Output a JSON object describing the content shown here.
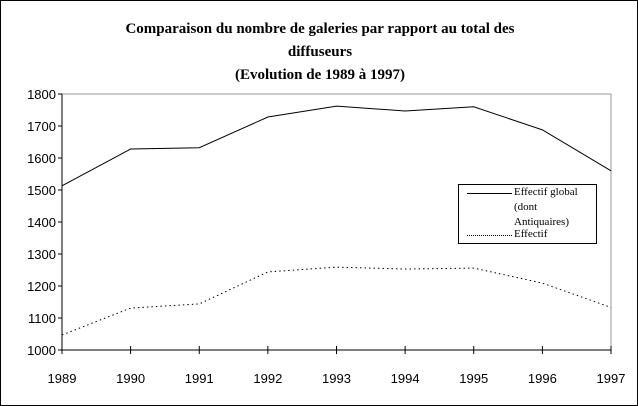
{
  "chart_data": {
    "type": "line",
    "title": "Comparaison du nombre de galeries par rapport au total des diffuseurs",
    "subtitle": "(Evolution de 1989 à 1997)",
    "xlabel": "",
    "ylabel": "",
    "x": [
      1989,
      1990,
      1991,
      1992,
      1993,
      1994,
      1995,
      1996,
      1997
    ],
    "ylim": [
      1000,
      1800
    ],
    "yticks": [
      1000,
      1100,
      1200,
      1300,
      1400,
      1500,
      1600,
      1700,
      1800
    ],
    "grid": false,
    "legend_position": "right",
    "series": [
      {
        "name": "Effectif global (dont Antiquaires)",
        "style": "solid",
        "color": "#000000",
        "values": [
          1513,
          1628,
          1632,
          1728,
          1762,
          1747,
          1760,
          1688,
          1560
        ]
      },
      {
        "name": "Effectif",
        "style": "dotted",
        "color": "#000000",
        "values": [
          1047,
          1131,
          1144,
          1244,
          1259,
          1253,
          1256,
          1209,
          1133
        ]
      }
    ]
  },
  "title_lines": [
    "Comparaison du nombre de galeries par rapport au total des",
    "diffuseurs",
    "(Evolution de 1989 à 1997)"
  ],
  "legend": {
    "line1": "Effectif global",
    "line2": "(dont",
    "line3": "Antiquaires)",
    "line4": "Effectif"
  }
}
